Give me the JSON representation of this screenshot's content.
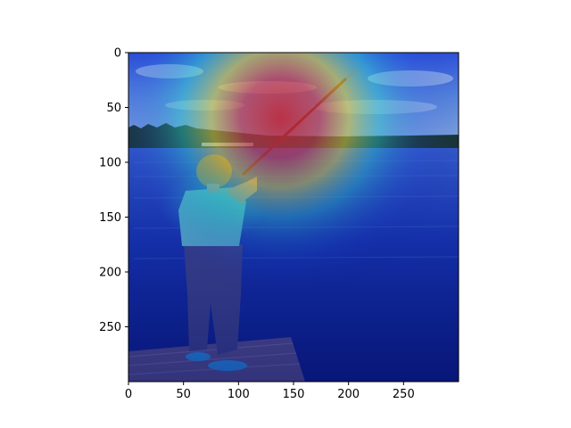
{
  "figure": {
    "image_extent": {
      "x": [
        0,
        300
      ],
      "y": [
        300,
        0
      ]
    },
    "x_ticks": [
      {
        "value": 0,
        "label": "0"
      },
      {
        "value": 50,
        "label": "50"
      },
      {
        "value": 100,
        "label": "100"
      },
      {
        "value": 150,
        "label": "150"
      },
      {
        "value": 200,
        "label": "200"
      },
      {
        "value": 250,
        "label": "250"
      }
    ],
    "y_ticks": [
      {
        "value": 0,
        "label": "0"
      },
      {
        "value": 50,
        "label": "50"
      },
      {
        "value": 100,
        "label": "100"
      },
      {
        "value": 150,
        "label": "150"
      },
      {
        "value": 200,
        "label": "200"
      },
      {
        "value": 250,
        "label": "250"
      }
    ],
    "scene": "girl fishing from a wooden dock on a lake under a blue sky",
    "overlay": "jet colormap heatmap, strongest near the horizon above the rod"
  },
  "colors": {
    "sky_top": "#2c4fd8",
    "sky_cloud": "#b9d4f2",
    "tree_line": "#1d3a2a",
    "water": "#1a3bbf",
    "water_deep": "#0a1f8a",
    "dock": "#6a5f90",
    "shirt": "#6fe0e0",
    "pants": "#4a4f8f",
    "hair": "#c98a3a",
    "skin": "#e7b08a",
    "shoe": "#2fb0ff",
    "rod": "#6b1a1a",
    "heat_hot": "#e02020",
    "heat_warm": "#f0e030",
    "heat_mid": "#30e0d0"
  }
}
